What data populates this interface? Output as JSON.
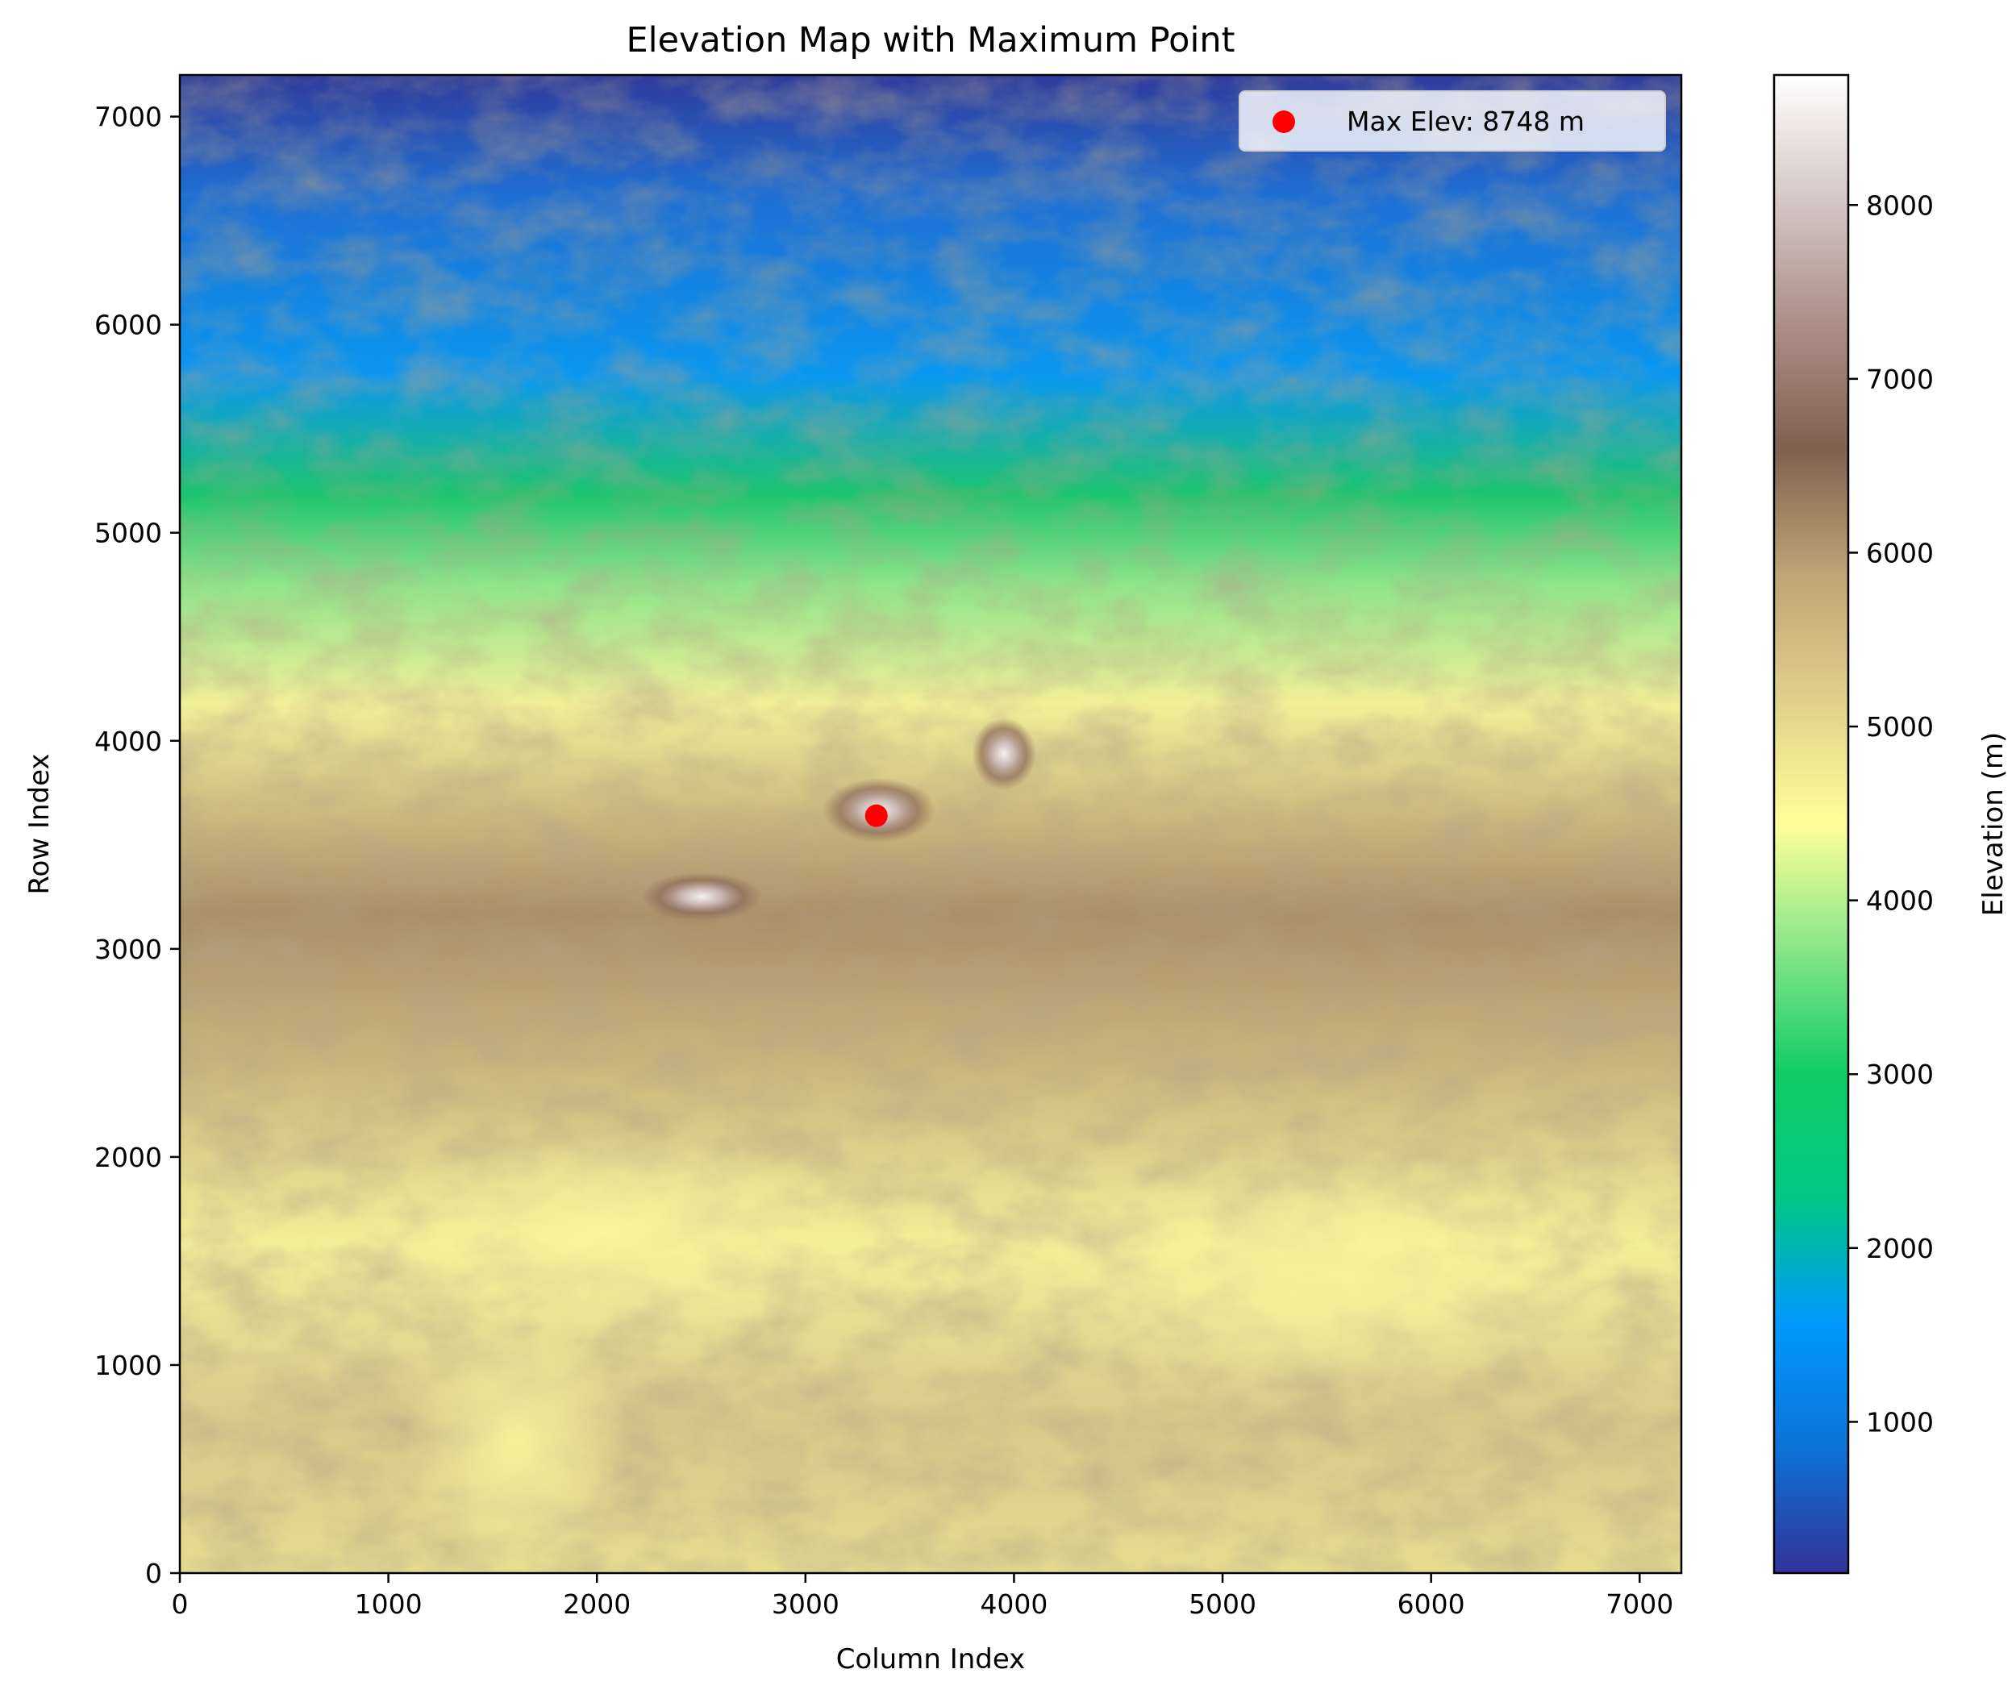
{
  "chart_data": {
    "type": "heatmap",
    "title": "Elevation Map with Maximum Point",
    "xlabel": "Column Index",
    "ylabel": "Row Index",
    "xlim": [
      0,
      7200
    ],
    "ylim": [
      0,
      7200
    ],
    "xticks": [
      0,
      1000,
      2000,
      3000,
      4000,
      5000,
      6000,
      7000
    ],
    "yticks": [
      0,
      1000,
      2000,
      3000,
      4000,
      5000,
      6000,
      7000
    ],
    "colormap": "terrain",
    "colorbar": {
      "label": "Elevation (m)",
      "range": [
        130,
        8748
      ],
      "ticks": [
        1000,
        2000,
        3000,
        4000,
        5000,
        6000,
        7000,
        8000
      ],
      "colors": [
        "#333399",
        "#0d72d7",
        "#0099ff",
        "#00c784",
        "#11cc66",
        "#88e688",
        "#ffff99",
        "#e0d08a",
        "#bfa475",
        "#80604f",
        "#ab8f88",
        "#d5c7c4",
        "#ffffff"
      ]
    },
    "max_point": {
      "x": 3340,
      "y": 3640,
      "elevation": 8748,
      "color": "#ff0000",
      "legend_label": "Max Elev: 8748 m"
    },
    "legend_position": "upper right"
  }
}
